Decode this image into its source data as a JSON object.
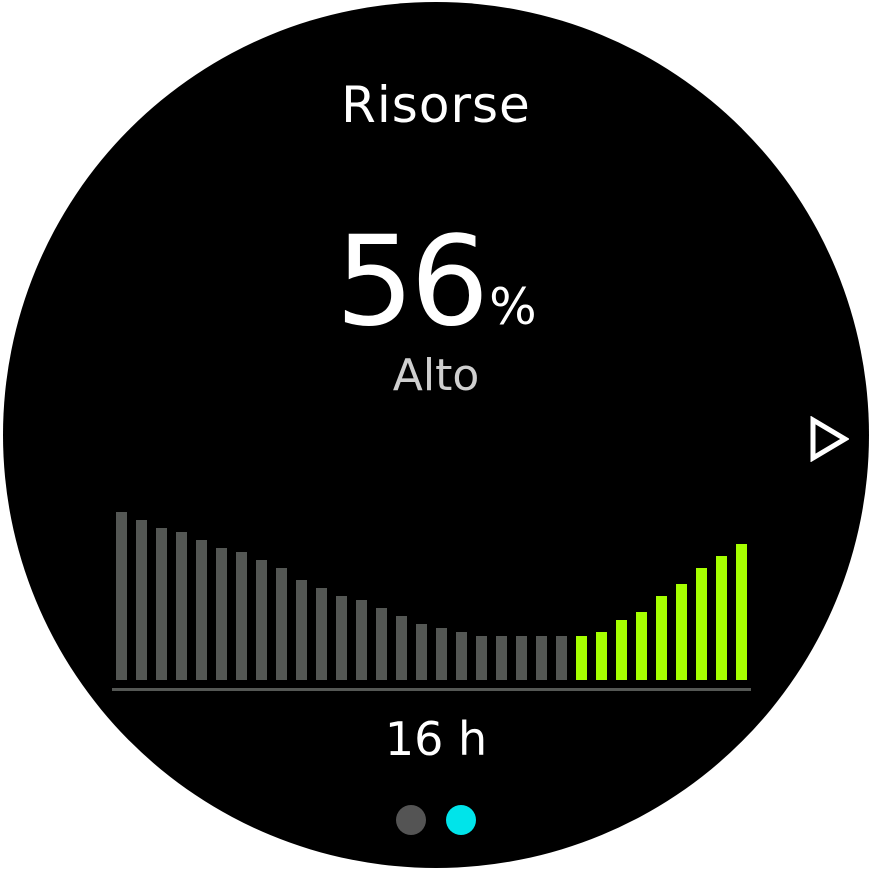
{
  "screen": {
    "title": "Risorse",
    "value": "56",
    "unit": "%",
    "level": "Alto",
    "next_icon": "triangle-right-outline-icon"
  },
  "chart_data": {
    "type": "bar",
    "values": [
      42,
      40,
      38,
      37,
      35,
      33,
      32,
      30,
      28,
      25,
      23,
      21,
      20,
      18,
      16,
      14,
      13,
      12,
      11,
      11,
      11,
      11,
      11,
      11,
      12,
      15,
      17,
      21,
      24,
      28,
      31,
      34
    ],
    "highlight_from_index": 23,
    "colors": {
      "past": "#545754",
      "recent": "#a6ff00",
      "axis": "#545754"
    },
    "xlabel": "16 h"
  },
  "pager": {
    "dots": [
      {
        "color": "#545454",
        "active": false
      },
      {
        "color": "#00e4ea",
        "active": true
      }
    ]
  }
}
